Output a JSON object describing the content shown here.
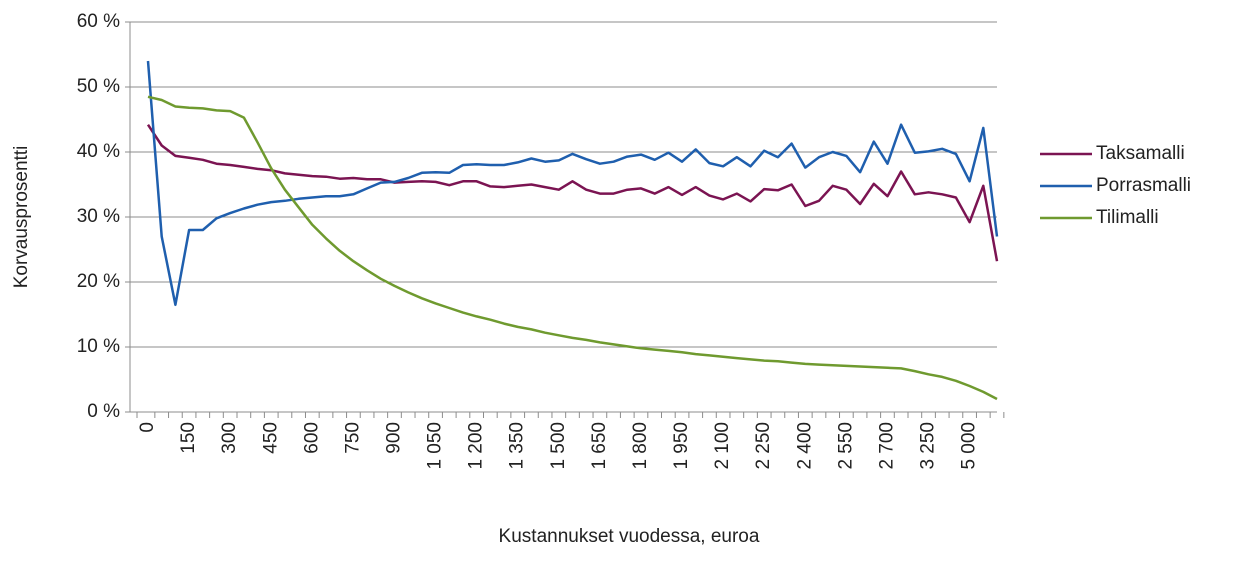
{
  "chart_data": {
    "type": "line",
    "x_label": "Kustannukset vuodessa, euroa",
    "y_label": "Korvausprosentti",
    "categories": [
      "0",
      null,
      null,
      "150",
      null,
      null,
      "300",
      null,
      null,
      "450",
      null,
      null,
      "600",
      null,
      null,
      "750",
      null,
      null,
      "900",
      null,
      null,
      "1 050",
      null,
      null,
      "1 200",
      null,
      null,
      "1 350",
      null,
      null,
      "1 500",
      null,
      null,
      "1 650",
      null,
      null,
      "1 800",
      null,
      null,
      "1 950",
      null,
      null,
      "2 100",
      null,
      null,
      "2 250",
      null,
      null,
      "2 400",
      null,
      null,
      "2 550",
      null,
      null,
      "2 700",
      null,
      null,
      "3 250",
      null,
      null,
      "5 000",
      null,
      null
    ],
    "series": [
      {
        "name": "Taksamalli",
        "color": "#7b1452",
        "values": [
          44.2,
          41,
          39.4,
          39.1,
          38.8,
          38.2,
          38,
          37.7,
          37.4,
          37.2,
          36.7,
          36.5,
          36.3,
          36.2,
          35.9,
          36,
          35.8,
          35.8,
          35.3,
          35.4,
          35.5,
          35.4,
          34.9,
          35.5,
          35.5,
          34.7,
          34.6,
          34.8,
          35,
          34.6,
          34.2,
          35.5,
          34.2,
          33.6,
          33.6,
          34.2,
          34.4,
          33.6,
          34.6,
          33.4,
          34.6,
          33.3,
          32.7,
          33.6,
          32.4,
          34.3,
          34.1,
          35,
          31.7,
          32.5,
          34.8,
          34.2,
          32,
          35.1,
          33.2,
          37,
          33.5,
          33.8,
          33.5,
          33,
          29.2,
          34.8,
          23.2
        ]
      },
      {
        "name": "Porrasmalli",
        "color": "#1f5fae",
        "values": [
          54,
          27,
          16.5,
          28,
          28,
          29.8,
          30.6,
          31.3,
          31.9,
          32.3,
          32.5,
          32.8,
          33,
          33.2,
          33.2,
          33.5,
          34.4,
          35.3,
          35.4,
          36,
          36.8,
          36.9,
          36.8,
          38,
          38.1,
          38,
          38,
          38.4,
          39,
          38.5,
          38.7,
          39.7,
          38.9,
          38.2,
          38.5,
          39.3,
          39.6,
          38.8,
          39.9,
          38.5,
          40.4,
          38.3,
          37.8,
          39.2,
          37.8,
          40.2,
          39.2,
          41.3,
          37.6,
          39.2,
          40,
          39.4,
          36.9,
          41.6,
          38.2,
          44.2,
          39.9,
          40.1,
          40.5,
          39.7,
          35.5,
          43.7,
          27
        ]
      },
      {
        "name": "Tilimalli",
        "color": "#6f9a2f",
        "values": [
          48.5,
          48,
          47,
          46.8,
          46.7,
          46.4,
          46.3,
          45.3,
          41.5,
          37.5,
          34.2,
          31.5,
          28.8,
          26.7,
          24.8,
          23.2,
          21.8,
          20.5,
          19.4,
          18.4,
          17.5,
          16.7,
          16,
          15.3,
          14.7,
          14.2,
          13.6,
          13.1,
          12.7,
          12.2,
          11.8,
          11.4,
          11.1,
          10.7,
          10.4,
          10.1,
          9.8,
          9.6,
          9.4,
          9.2,
          8.9,
          8.7,
          8.5,
          8.3,
          8.1,
          7.9,
          7.8,
          7.6,
          7.4,
          7.3,
          7.2,
          7.1,
          7,
          6.9,
          6.8,
          6.7,
          6.3,
          5.8,
          5.4,
          4.8,
          4,
          3.1,
          2
        ]
      }
    ],
    "ylim": [
      0,
      60
    ],
    "yticks": [
      {
        "value": 0,
        "label": "0 %"
      },
      {
        "value": 10,
        "label": "10 %"
      },
      {
        "value": 20,
        "label": "20 %"
      },
      {
        "value": 30,
        "label": "30 %"
      },
      {
        "value": 40,
        "label": "40 %"
      },
      {
        "value": 50,
        "label": "50 %"
      },
      {
        "value": 60,
        "label": "60 %"
      }
    ],
    "grid": true,
    "legend": "right"
  }
}
